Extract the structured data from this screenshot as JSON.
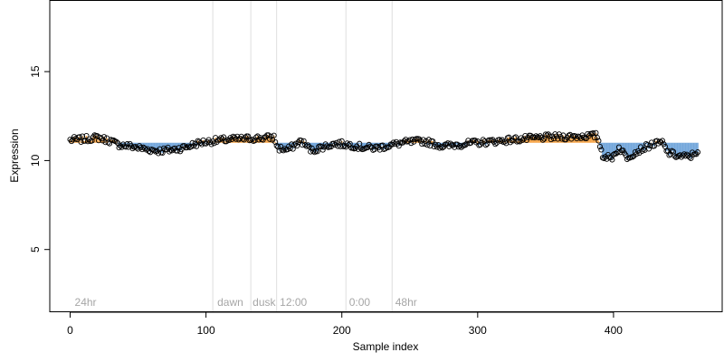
{
  "chart_data": {
    "type": "scatter",
    "title": "",
    "xlabel": "Sample index",
    "ylabel": "Expression",
    "xlim": [
      -15,
      480
    ],
    "ylim": [
      1.5,
      19
    ],
    "xticks": [
      0,
      100,
      200,
      300,
      400
    ],
    "yticks": [
      5,
      10,
      15
    ],
    "baseline": 11.0,
    "colors": {
      "above": "#f5a54a",
      "below": "#74a7db",
      "point_stroke": "#000000",
      "marker_line": "#dedede"
    },
    "markers": [
      {
        "x": 105,
        "label": ""
      },
      {
        "x": 133,
        "label": ""
      },
      {
        "x": 152,
        "label": ""
      },
      {
        "x": 203,
        "label": ""
      },
      {
        "x": 237,
        "label": ""
      }
    ],
    "annotations": [
      {
        "x": 2,
        "text": "24hr"
      },
      {
        "x": 107,
        "text": "dawn"
      },
      {
        "x": 133,
        "text": "dusk"
      },
      {
        "x": 153,
        "text": "12:00"
      },
      {
        "x": 204,
        "text": "0:00"
      },
      {
        "x": 238,
        "text": "48hr"
      }
    ],
    "series_profile": [
      [
        0,
        11.15
      ],
      [
        10,
        11.2
      ],
      [
        20,
        11.3
      ],
      [
        30,
        11.1
      ],
      [
        35,
        10.9
      ],
      [
        45,
        10.8
      ],
      [
        55,
        10.65
      ],
      [
        65,
        10.55
      ],
      [
        75,
        10.6
      ],
      [
        85,
        10.75
      ],
      [
        95,
        11.0
      ],
      [
        105,
        11.1
      ],
      [
        120,
        11.2
      ],
      [
        135,
        11.25
      ],
      [
        150,
        11.3
      ],
      [
        153,
        10.7
      ],
      [
        160,
        10.6
      ],
      [
        170,
        11.1
      ],
      [
        178,
        10.55
      ],
      [
        185,
        10.75
      ],
      [
        195,
        10.95
      ],
      [
        205,
        10.9
      ],
      [
        215,
        10.75
      ],
      [
        225,
        10.7
      ],
      [
        235,
        10.85
      ],
      [
        245,
        11.0
      ],
      [
        260,
        11.1
      ],
      [
        275,
        10.8
      ],
      [
        285,
        10.9
      ],
      [
        300,
        11.0
      ],
      [
        315,
        11.1
      ],
      [
        330,
        11.2
      ],
      [
        350,
        11.3
      ],
      [
        370,
        11.35
      ],
      [
        388,
        11.4
      ],
      [
        392,
        10.3
      ],
      [
        398,
        10.1
      ],
      [
        404,
        10.7
      ],
      [
        410,
        10.2
      ],
      [
        418,
        10.55
      ],
      [
        428,
        10.9
      ],
      [
        436,
        11.0
      ],
      [
        440,
        10.45
      ],
      [
        448,
        10.25
      ],
      [
        456,
        10.2
      ],
      [
        462,
        10.55
      ]
    ],
    "n_points": 463
  }
}
